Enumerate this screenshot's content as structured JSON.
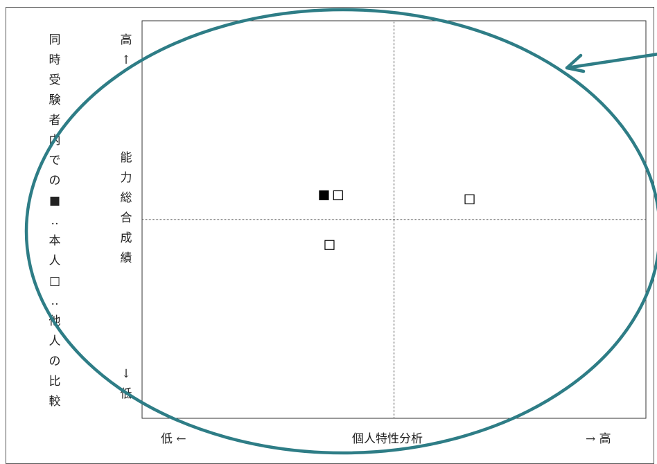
{
  "chart_data": {
    "type": "scatter",
    "title": "",
    "xlabel": "個人特性分析",
    "ylabel": "能力総合成績",
    "side_note": "同時受験者内での■‥本人□‥他人の比較",
    "y_high_label": "高↑",
    "y_low_label": "↓低",
    "x_low_label": "低 ←",
    "x_high_label": "→ 高",
    "xlim": [
      0,
      1
    ],
    "ylim": [
      0,
      1
    ],
    "quadrant_lines": {
      "x": 0.5,
      "y": 0.5
    },
    "grid": false,
    "series": [
      {
        "name": "本人",
        "marker": "filled-square",
        "points": [
          {
            "x": 0.361,
            "y": 0.561
          }
        ]
      },
      {
        "name": "他人",
        "marker": "open-square",
        "points": [
          {
            "x": 0.389,
            "y": 0.561
          },
          {
            "x": 0.65,
            "y": 0.551
          },
          {
            "x": 0.372,
            "y": 0.436
          }
        ]
      }
    ]
  },
  "annotation": {
    "color": "#2e7d86",
    "shape": "ellipse",
    "pointer": "arrow"
  }
}
